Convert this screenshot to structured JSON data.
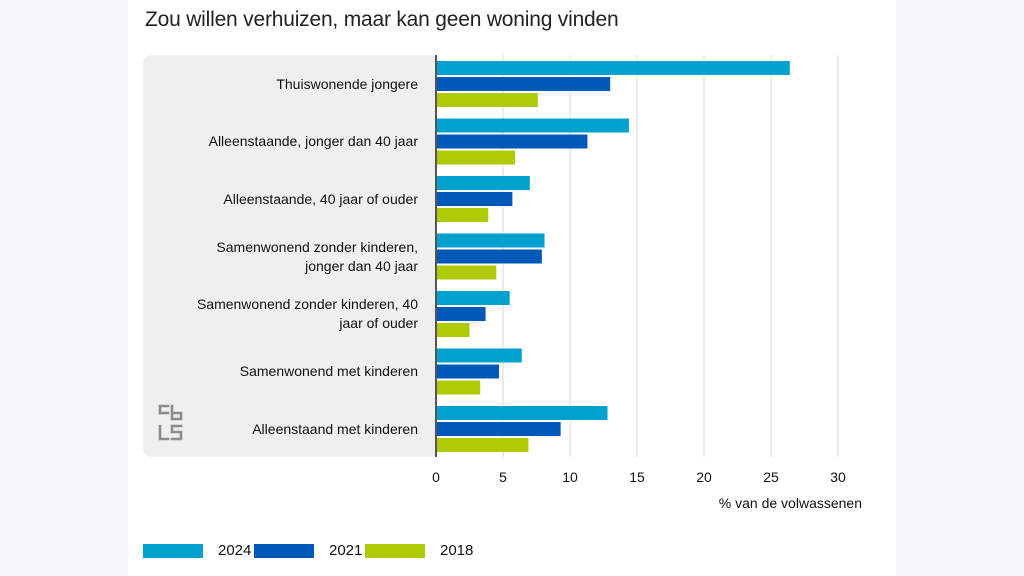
{
  "title": "Zou willen verhuizen, maar kan geen woning vinden",
  "chart_data": {
    "type": "bar",
    "orientation": "horizontal",
    "title": "Zou willen verhuizen, maar kan geen woning vinden",
    "xlabel": "% van de volwassenen",
    "ylabel": "",
    "xlim": [
      0,
      30
    ],
    "x_ticks": [
      0,
      5,
      10,
      15,
      20,
      25,
      30
    ],
    "grid": true,
    "legend_position": "bottom-left",
    "categories": [
      "Thuiswonende jongere",
      "Alleenstaande, jonger dan 40 jaar",
      "Alleenstaande, 40 jaar of ouder",
      "Samenwonend zonder kinderen, jonger dan 40 jaar",
      "Samenwonend zonder kinderen, 40 jaar of ouder",
      "Samenwonend met kinderen",
      "Alleenstaand met kinderen"
    ],
    "category_lines": [
      [
        "Thuiswonende jongere"
      ],
      [
        "Alleenstaande, jonger dan 40 jaar"
      ],
      [
        "Alleenstaande, 40 jaar of ouder"
      ],
      [
        "Samenwonend zonder kinderen,",
        "jonger dan 40 jaar"
      ],
      [
        "Samenwonend zonder kinderen, 40",
        "jaar of ouder"
      ],
      [
        "Samenwonend met kinderen"
      ],
      [
        "Alleenstaand met kinderen"
      ]
    ],
    "series": [
      {
        "name": "2024",
        "color": "#00a1cd",
        "values": [
          26.4,
          14.4,
          7.0,
          8.1,
          5.5,
          6.4,
          12.8
        ]
      },
      {
        "name": "2021",
        "color": "#0058b8",
        "values": [
          13.0,
          11.3,
          5.7,
          7.9,
          3.7,
          4.7,
          9.3
        ]
      },
      {
        "name": "2018",
        "color": "#afcb05",
        "values": [
          7.6,
          5.9,
          3.9,
          4.5,
          2.5,
          3.3,
          6.9
        ]
      }
    ]
  }
}
